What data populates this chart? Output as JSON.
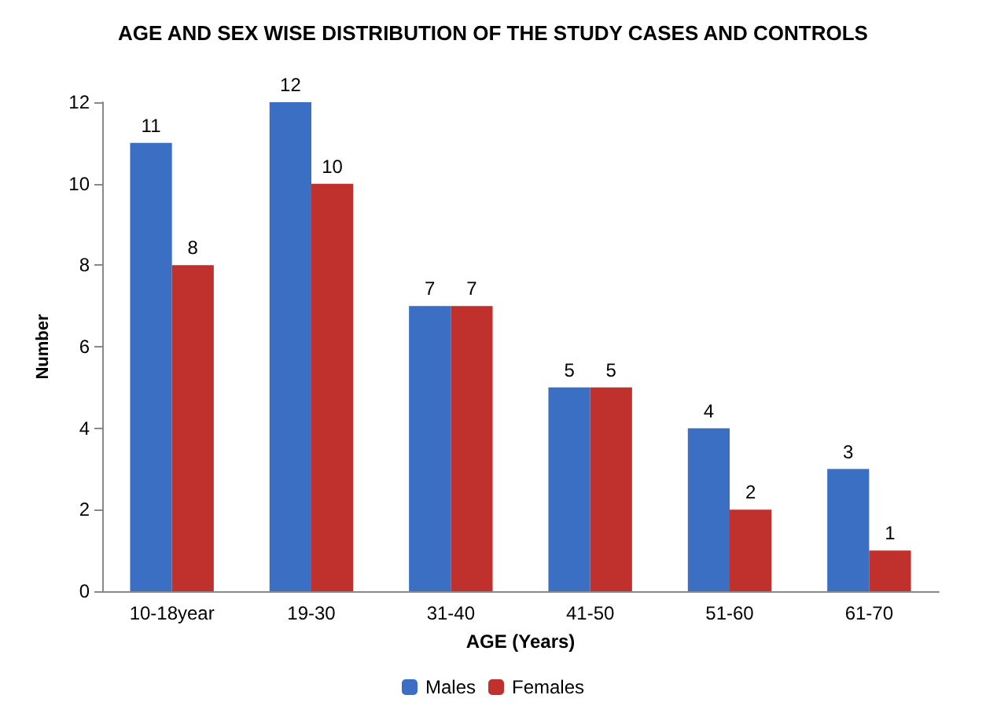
{
  "chart_data": {
    "type": "bar",
    "title": "AGE AND SEX WISE DISTRIBUTION OF THE STUDY CASES AND CONTROLS",
    "xlabel": "AGE (Years)",
    "ylabel": "Number",
    "categories": [
      "10-18year",
      "19-30",
      "31-40",
      "41-50",
      "51-60",
      "61-70"
    ],
    "series": [
      {
        "name": "Males",
        "color": "#3a6fc4",
        "values": [
          11,
          12,
          7,
          5,
          4,
          3
        ]
      },
      {
        "name": "Females",
        "color": "#c0312e",
        "values": [
          8,
          10,
          7,
          5,
          2,
          1
        ]
      }
    ],
    "ylim": [
      0,
      12
    ],
    "yticks": [
      0,
      2,
      4,
      6,
      8,
      10,
      12
    ],
    "grid": false,
    "legend": "bottom",
    "data_labels": true
  }
}
